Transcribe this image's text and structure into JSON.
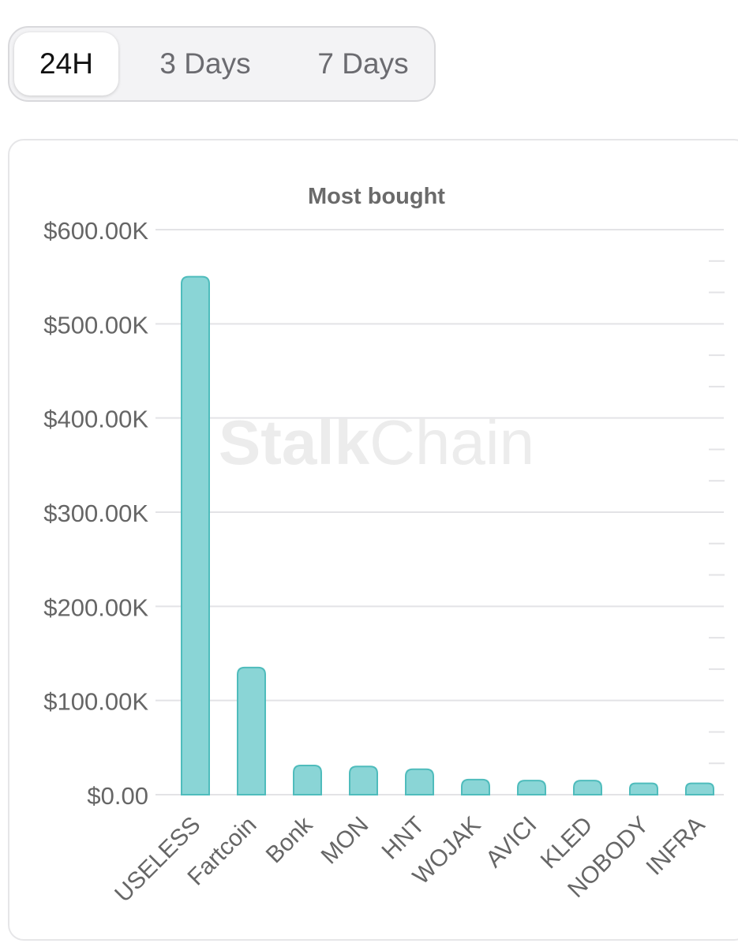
{
  "tabs": {
    "items": [
      "24H",
      "3 Days",
      "7 Days"
    ],
    "active_index": 0
  },
  "watermark": {
    "bold": "Stalk",
    "light": "Chain"
  },
  "colors": {
    "bar_fill": "#8ad5d6",
    "bar_stroke": "#4fbcbc",
    "grid": "#e3e3e6",
    "axis_text": "#666666",
    "title_text": "#6a6a6a"
  },
  "chart_data": {
    "type": "bar",
    "title": "Most bought",
    "xlabel": "",
    "ylabel": "",
    "categories": [
      "USELESS",
      "Fartcoin",
      "Bonk",
      "MON",
      "HNT",
      "WOJAK",
      "AVICI",
      "KLED",
      "NOBODY",
      "INFRA"
    ],
    "values": [
      550000,
      135000,
      31000,
      30000,
      27000,
      16000,
      15000,
      15000,
      12000,
      12000
    ],
    "ylim": [
      0,
      600000
    ],
    "y_ticks": [
      0,
      100000,
      200000,
      300000,
      400000,
      500000,
      600000
    ],
    "y_tick_labels": [
      "$0.00",
      "$100.00K",
      "$200.00K",
      "$300.00K",
      "$400.00K",
      "$500.00K",
      "$600.00K"
    ],
    "grid": true,
    "legend": "none"
  }
}
